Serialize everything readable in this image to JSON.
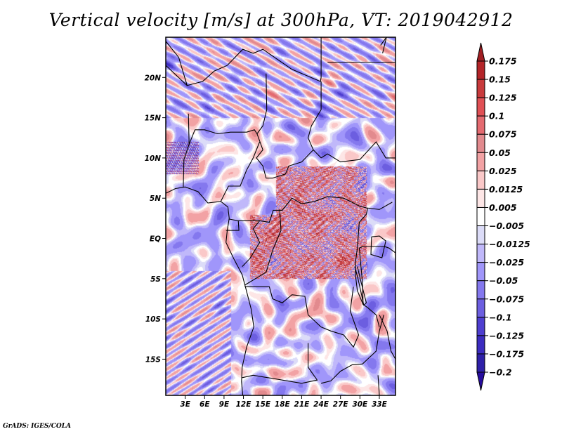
{
  "chart_data": {
    "type": "heatmap",
    "title": "Vertical velocity [m/s] at 300hPa, VT: 2019042912",
    "variable": "Vertical velocity",
    "units": "m/s",
    "level": "300hPa",
    "valid_time": "2019042912",
    "xlabel": "",
    "ylabel": "",
    "x_range_deg": [
      0,
      35.5
    ],
    "y_range_deg": [
      -19.5,
      25
    ],
    "x_ticks": [
      {
        "value": 3,
        "label": "3E"
      },
      {
        "value": 6,
        "label": "6E"
      },
      {
        "value": 9,
        "label": "9E"
      },
      {
        "value": 12,
        "label": "12E"
      },
      {
        "value": 15,
        "label": "15E"
      },
      {
        "value": 18,
        "label": "18E"
      },
      {
        "value": 21,
        "label": "21E"
      },
      {
        "value": 24,
        "label": "24E"
      },
      {
        "value": 27,
        "label": "27E"
      },
      {
        "value": 30,
        "label": "30E"
      },
      {
        "value": 33,
        "label": "33E"
      }
    ],
    "y_ticks": [
      {
        "value": 20,
        "label": "20N"
      },
      {
        "value": 15,
        "label": "15N"
      },
      {
        "value": 10,
        "label": "10N"
      },
      {
        "value": 5,
        "label": "5N"
      },
      {
        "value": 0,
        "label": "EQ"
      },
      {
        "value": -5,
        "label": "5S"
      },
      {
        "value": -10,
        "label": "10S"
      },
      {
        "value": -15,
        "label": "15S"
      }
    ],
    "colorbar": {
      "levels": [
        0.175,
        0.15,
        0.125,
        0.1,
        0.075,
        0.05,
        0.025,
        0.0125,
        0.005,
        -0.005,
        -0.0125,
        -0.025,
        -0.05,
        -0.075,
        -0.1,
        -0.125,
        -0.175,
        -0.2
      ],
      "labels": [
        "0.175",
        "0.15",
        "0.125",
        "0.1",
        "0.075",
        "0.05",
        "0.025",
        "0.0125",
        "0.005",
        "−0.005",
        "−0.0125",
        "−0.025",
        "−0.05",
        "−0.075",
        "−0.1",
        "−0.125",
        "−0.175",
        "−0.2"
      ],
      "colors": [
        "#a01e22",
        "#b32428",
        "#c83a3c",
        "#e05055",
        "#e46a70",
        "#e28a8e",
        "#f2a2a4",
        "#fac8c8",
        "#fde6e6",
        "#ffffff",
        "#dcdcf8",
        "#c0b8fa",
        "#a096fa",
        "#8478ee",
        "#6c5ee0",
        "#4e3ed0",
        "#3c2cc0",
        "#2e20a8",
        "#260c9e"
      ],
      "extend": "both",
      "placement": "right"
    },
    "features": {
      "high_ascent_regions": [
        "Central African Republic / South Sudan border (~5-8N, 18-30E)",
        "Congo basin (~0-5S, 15-25E)",
        "Great Lakes region (~0-5S, 28-31E)"
      ],
      "banded_waves": [
        "Sahara northwest (~18-25N)",
        "Southeast Atlantic (~5-19S, 0-10E)"
      ]
    }
  },
  "footer": "GrADS: IGES/COLA"
}
